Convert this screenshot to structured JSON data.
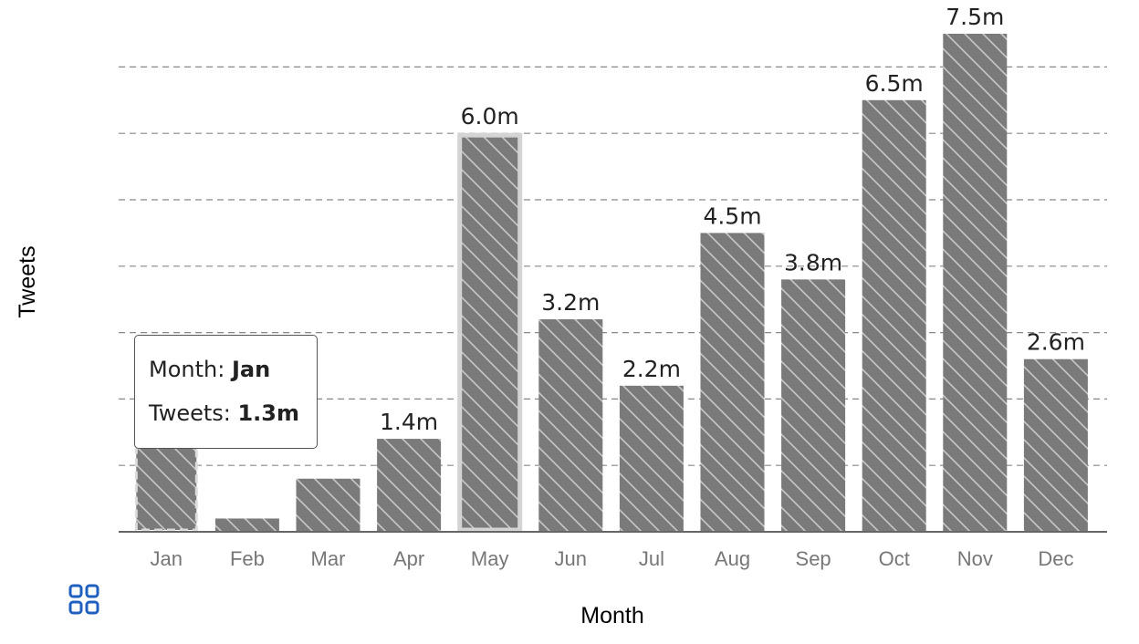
{
  "chart_data": {
    "type": "bar",
    "categories": [
      "Jan",
      "Feb",
      "Mar",
      "Apr",
      "May",
      "Jun",
      "Jul",
      "Aug",
      "Sep",
      "Oct",
      "Nov",
      "Dec"
    ],
    "values": [
      1.3,
      0.2,
      0.8,
      1.4,
      6.0,
      3.2,
      2.2,
      4.5,
      3.8,
      6.5,
      7.5,
      2.6
    ],
    "data_labels": [
      "",
      "",
      "",
      "1.4m",
      "6.0m",
      "3.2m",
      "2.2m",
      "4.5m",
      "3.8m",
      "6.5m",
      "7.5m",
      "2.6m"
    ],
    "xlabel": "Month",
    "ylabel": "Tweets",
    "ylim": [
      0,
      7.5
    ],
    "grid": "horizontal dashed",
    "bar_color": "#7a7a7a",
    "pattern": "diagonal hatch",
    "highlighted_category": "May",
    "focused_category": "Jan"
  },
  "tooltip": {
    "month_key": "Month: ",
    "month_value": "Jan",
    "tweets_key": "Tweets: ",
    "tweets_value": "1.3m"
  },
  "icons": {
    "grid": "grid-view-icon"
  },
  "colors": {
    "bar": "#7a7a7a",
    "grid": "#888888",
    "axis": "#666666",
    "icon": "#1f5fbf"
  }
}
